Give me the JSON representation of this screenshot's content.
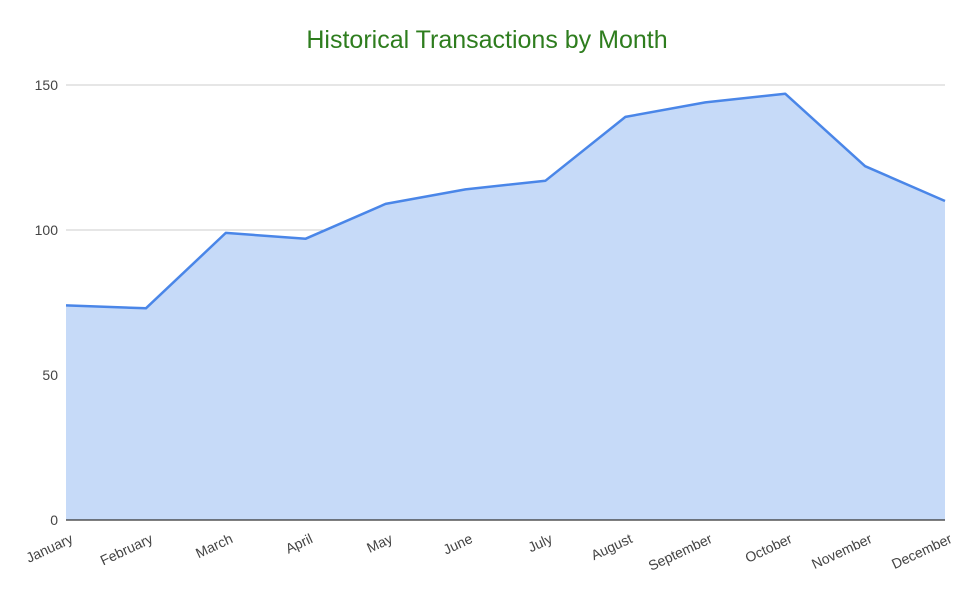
{
  "chart_data": {
    "type": "area",
    "title": "Historical Transactions by Month",
    "xlabel": "",
    "ylabel": "",
    "categories": [
      "January",
      "February",
      "March",
      "April",
      "May",
      "June",
      "July",
      "August",
      "September",
      "October",
      "November",
      "December"
    ],
    "series": [
      {
        "values": [
          74,
          73,
          99,
          97,
          109,
          114,
          117,
          139,
          144,
          147,
          122,
          110
        ]
      }
    ],
    "ylim": [
      0,
      150
    ],
    "yticks": [
      0,
      50,
      100,
      150
    ],
    "grid": true,
    "legend": "none",
    "colors": {
      "title": "#2e7d1e",
      "line": "#4a86e8",
      "fill": "#c6daf8",
      "grid": "#cccccc",
      "axis": "#333333"
    }
  }
}
